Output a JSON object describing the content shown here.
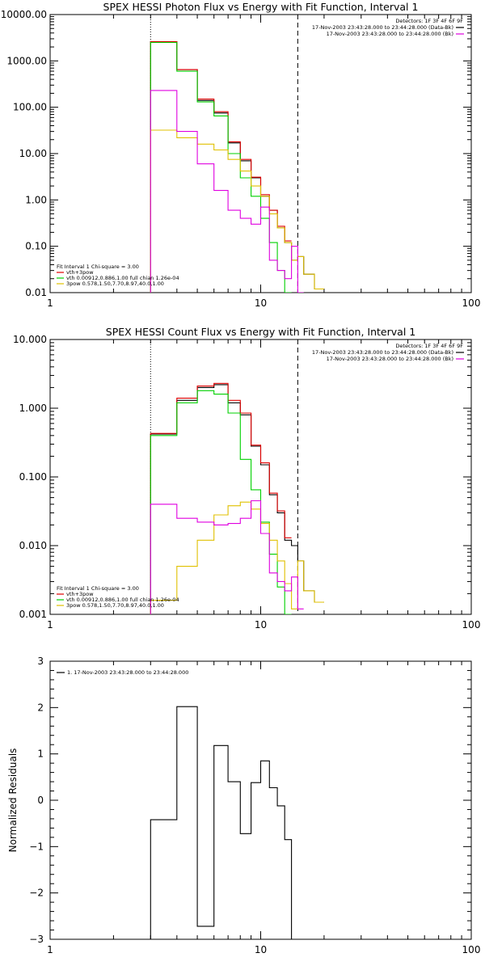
{
  "chart_data": [
    {
      "type": "line",
      "title": "SPEX HESSI Photon Flux vs Energy with Fit Function, Interval 1",
      "x_scale": "log",
      "y_scale": "log",
      "xlim": [
        1,
        100
      ],
      "ylim": [
        0.01,
        10000
      ],
      "x_tick_labels": [
        "1",
        "10",
        "100"
      ],
      "y_tick_labels": [
        "0.01",
        "0.10",
        "1.00",
        "10.00",
        "100.00",
        "1000.00",
        "10000.00"
      ],
      "vlines": [
        {
          "x": 3,
          "style": "dotted"
        },
        {
          "x": 15,
          "style": "dashed"
        }
      ],
      "legend_top": {
        "header": "Detectors: 1F 3F 4F 6F 9F",
        "entries": [
          {
            "label": "17-Nov-2003 23:43:28.000 to 23:44:28.000 (Data-Bk)",
            "color": "#000000"
          },
          {
            "label": "17-Nov-2003 23:43:28.000 to 23:44:28.000 (Bk)",
            "color": "#e000e0"
          }
        ]
      },
      "legend_bottom": {
        "header": "Fit Interval 1   Chi-square = 3.00",
        "entries": [
          {
            "label": "vth+3pow",
            "color": "#e00000"
          },
          {
            "label": "vth 0.00912,0.886,1.00   full chian 1.26e-04",
            "color": "#00d000"
          },
          {
            "label": "3pow 0.578,1.50,7.70,8.97,40.0,1.00",
            "color": "#e0c000"
          }
        ]
      },
      "bin_edges": [
        3,
        4,
        5,
        6,
        7,
        8,
        9,
        10,
        11,
        12,
        13,
        14,
        15,
        16,
        18,
        20
      ],
      "series": [
        {
          "color": "#000000",
          "values": [
            2600,
            650,
            140,
            75,
            17,
            7,
            3,
            1.2,
            0.6,
            0.25,
            0.12,
            0.05,
            0.06,
            0.025,
            0.012
          ]
        },
        {
          "color": "#e00000",
          "values": [
            2600,
            650,
            150,
            80,
            18,
            7.5,
            3.1,
            1.3,
            0.6,
            0.27,
            0.13,
            null,
            null,
            null,
            null
          ]
        },
        {
          "color": "#00d000",
          "values": [
            2500,
            600,
            130,
            65,
            10,
            3,
            1.2,
            0.4,
            0.12,
            0.03,
            0.01,
            null,
            null,
            null,
            null
          ]
        },
        {
          "color": "#e0c000",
          "values": [
            32,
            22,
            16,
            12,
            7.5,
            4.2,
            2,
            1.2,
            0.5,
            0.25,
            0.12,
            0.05,
            0.06,
            0.025,
            0.012
          ]
        },
        {
          "color": "#e000e0",
          "values": [
            230,
            30,
            6,
            1.6,
            0.6,
            0.4,
            0.3,
            0.7,
            0.05,
            0.03,
            0.02,
            0.1,
            0.01,
            null,
            null
          ]
        }
      ]
    },
    {
      "type": "line",
      "title": "SPEX HESSI Count Flux vs Energy with Fit Function, Interval 1",
      "x_scale": "log",
      "y_scale": "log",
      "xlim": [
        1,
        100
      ],
      "ylim": [
        0.001,
        10
      ],
      "x_tick_labels": [
        "1",
        "10",
        "100"
      ],
      "y_tick_labels": [
        "0.001",
        "0.010",
        "0.100",
        "1.000",
        "10.000"
      ],
      "vlines": [
        {
          "x": 3,
          "style": "dotted"
        },
        {
          "x": 15,
          "style": "dashed"
        }
      ],
      "legend_top": {
        "header": "Detectors: 1F 3F 4F 6F 9F",
        "entries": [
          {
            "label": "17-Nov-2003 23:43:28.000 to 23:44:28.000 (Data-Bk)",
            "color": "#000000"
          },
          {
            "label": "17-Nov-2003 23:43:28.000 to 23:44:28.000 (Bk)",
            "color": "#e000e0"
          }
        ]
      },
      "legend_bottom": {
        "header": "Fit Interval 1   Chi-square = 3.00",
        "entries": [
          {
            "label": "vth+3pow",
            "color": "#e00000"
          },
          {
            "label": "vth 0.00912,0.886,1.00   full chian 1.26e-04",
            "color": "#00d000"
          },
          {
            "label": "3pow 0.578,1.50,7.70,8.97,40.0,1.00",
            "color": "#e0c000"
          }
        ]
      },
      "bin_edges": [
        3,
        4,
        5,
        6,
        7,
        8,
        9,
        10,
        11,
        12,
        13,
        14,
        15,
        16,
        18,
        20
      ],
      "series": [
        {
          "color": "#000000",
          "values": [
            0.42,
            1.3,
            2.0,
            2.2,
            1.2,
            0.8,
            0.28,
            0.15,
            0.055,
            0.03,
            0.012,
            0.01,
            0.006,
            0.0022,
            0.0015
          ]
        },
        {
          "color": "#e00000",
          "values": [
            0.43,
            1.4,
            2.1,
            2.3,
            1.3,
            0.85,
            0.29,
            0.16,
            0.058,
            0.032,
            0.013,
            null,
            null,
            null,
            null
          ]
        },
        {
          "color": "#00d000",
          "values": [
            0.4,
            1.2,
            1.8,
            1.6,
            0.85,
            0.18,
            0.065,
            0.022,
            0.0075,
            0.0025,
            0.001,
            null,
            null,
            null,
            null
          ]
        },
        {
          "color": "#e0c000",
          "values": [
            0.0016,
            0.005,
            0.012,
            0.028,
            0.038,
            0.043,
            0.034,
            0.021,
            0.012,
            0.006,
            0.0028,
            0.0012,
            0.006,
            0.0022,
            0.0015
          ]
        },
        {
          "color": "#e000e0",
          "values": [
            0.04,
            0.025,
            0.022,
            0.02,
            0.021,
            0.025,
            0.045,
            0.015,
            0.004,
            0.003,
            0.0022,
            0.0035,
            0.0012,
            null,
            null
          ]
        }
      ]
    },
    {
      "type": "line",
      "title": "",
      "x_scale": "log",
      "y_scale": "linear",
      "xlim": [
        1,
        100
      ],
      "ylim": [
        -3,
        3
      ],
      "ylabel": "Normalized Residuals",
      "x_tick_labels": [
        "1",
        "10",
        "100"
      ],
      "y_tick_labels": [
        "−3",
        "−2",
        "−1",
        "0",
        "1",
        "2",
        "3"
      ],
      "legend": {
        "entries": [
          {
            "label": "1. 17-Nov-2003 23:43:28.000 to 23:44:28.000",
            "color": "#000000"
          }
        ]
      },
      "bin_edges": [
        3,
        4,
        5,
        6,
        7,
        8,
        9,
        10,
        11,
        12,
        13,
        14,
        15
      ],
      "series": [
        {
          "color": "#000000",
          "values": [
            -0.42,
            2.02,
            -2.72,
            1.18,
            0.4,
            -0.72,
            0.38,
            0.85,
            0.27,
            -0.12,
            -0.85,
            -3.0
          ]
        }
      ]
    }
  ]
}
